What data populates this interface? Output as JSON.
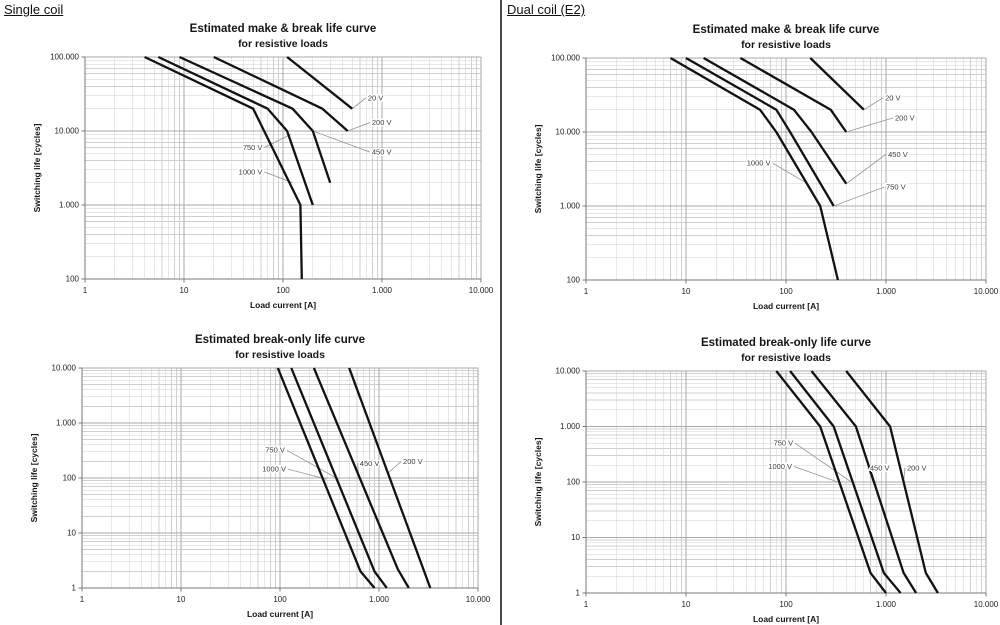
{
  "page": {
    "left_header": "Single coil",
    "right_header": "Dual coil (E2)"
  },
  "style": {
    "curve_color": "#121212",
    "grid_minor_color": "#d0d0d0",
    "grid_major_color": "#a8a8a8",
    "axis_color": "#7a7a7a",
    "leader_color": "#9c9c9c"
  },
  "chart_data": [
    {
      "id": "single-coil-make-break",
      "type": "line",
      "panel": "Single coil",
      "title": "Estimated make & break life curve",
      "subtitle": "for resistive loads",
      "xlabel": "Load current [A]",
      "ylabel": "Switching life [cycles]",
      "xscale": "log",
      "yscale": "log",
      "grid": true,
      "xlim": [
        1,
        10000
      ],
      "ylim": [
        100,
        100000
      ],
      "xticks": [
        {
          "v": 1,
          "label": "1"
        },
        {
          "v": 10,
          "label": "10"
        },
        {
          "v": 100,
          "label": "100"
        },
        {
          "v": 1000,
          "label": "1.000"
        },
        {
          "v": 10000,
          "label": "10.000"
        }
      ],
      "yticks": [
        {
          "v": 100,
          "label": "100"
        },
        {
          "v": 1000,
          "label": "1.000"
        },
        {
          "v": 10000,
          "label": "10.000"
        },
        {
          "v": 100000,
          "label": "100.000"
        }
      ],
      "series": [
        {
          "name": "20 V",
          "points": [
            [
              110,
              100000
            ],
            [
              500,
              20000
            ]
          ]
        },
        {
          "name": "200 V",
          "points": [
            [
              20,
              100000
            ],
            [
              250,
              20000
            ],
            [
              450,
              10000
            ]
          ]
        },
        {
          "name": "450 V",
          "points": [
            [
              9,
              100000
            ],
            [
              125,
              20000
            ],
            [
              200,
              10000
            ],
            [
              300,
              2000
            ]
          ]
        },
        {
          "name": "750 V",
          "points": [
            [
              5.5,
              100000
            ],
            [
              70,
              20000
            ],
            [
              110,
              10000
            ],
            [
              200,
              1000
            ]
          ]
        },
        {
          "name": "1000 V",
          "points": [
            [
              4,
              100000
            ],
            [
              50,
              20000
            ],
            [
              150,
              1000
            ],
            [
              155,
              100
            ]
          ]
        }
      ],
      "annotations": [
        {
          "text": "20 V",
          "anchor": "start",
          "label_at": [
            720,
            28000
          ],
          "point_at": [
            500,
            20000
          ]
        },
        {
          "text": "200 V",
          "anchor": "start",
          "label_at": [
            790,
            13000
          ],
          "point_at": [
            450,
            10000
          ]
        },
        {
          "text": "450 V",
          "anchor": "start",
          "label_at": [
            790,
            5200
          ],
          "point_at": [
            200,
            10000
          ]
        },
        {
          "text": "750 V",
          "anchor": "end",
          "label_at": [
            62,
            6000
          ],
          "point_at": [
            120,
            9000
          ]
        },
        {
          "text": "1000 V",
          "anchor": "end",
          "label_at": [
            62,
            2800
          ],
          "point_at": [
            125,
            2000
          ]
        }
      ]
    },
    {
      "id": "dual-coil-make-break",
      "type": "line",
      "panel": "Dual coil (E2)",
      "title": "Estimated make & break life curve",
      "subtitle": "for resistive loads",
      "xlabel": "Load current [A]",
      "ylabel": "Switching life [cycles]",
      "xscale": "log",
      "yscale": "log",
      "grid": true,
      "xlim": [
        1,
        10000
      ],
      "ylim": [
        100,
        100000
      ],
      "xticks": [
        {
          "v": 1,
          "label": "1"
        },
        {
          "v": 10,
          "label": "10"
        },
        {
          "v": 100,
          "label": "100"
        },
        {
          "v": 1000,
          "label": "1.000"
        },
        {
          "v": 10000,
          "label": "10.000"
        }
      ],
      "yticks": [
        {
          "v": 100,
          "label": "100"
        },
        {
          "v": 1000,
          "label": "1.000"
        },
        {
          "v": 10000,
          "label": "10.000"
        },
        {
          "v": 100000,
          "label": "100.000"
        }
      ],
      "series": [
        {
          "name": "20 V",
          "points": [
            [
              175,
              100000
            ],
            [
              600,
              20000
            ]
          ]
        },
        {
          "name": "200 V",
          "points": [
            [
              35,
              100000
            ],
            [
              280,
              20000
            ],
            [
              400,
              10000
            ]
          ]
        },
        {
          "name": "450 V",
          "points": [
            [
              15,
              100000
            ],
            [
              120,
              20000
            ],
            [
              180,
              10000
            ],
            [
              400,
              2000
            ]
          ]
        },
        {
          "name": "750 V",
          "points": [
            [
              10,
              100000
            ],
            [
              80,
              20000
            ],
            [
              110,
              10000
            ],
            [
              300,
              1000
            ]
          ]
        },
        {
          "name": "1000 V",
          "points": [
            [
              7,
              100000
            ],
            [
              55,
              20000
            ],
            [
              80,
              10000
            ],
            [
              220,
              1000
            ],
            [
              330,
              100
            ]
          ]
        }
      ],
      "annotations": [
        {
          "text": "20 V",
          "anchor": "start",
          "label_at": [
            980,
            29000
          ],
          "point_at": [
            600,
            20000
          ]
        },
        {
          "text": "200 V",
          "anchor": "start",
          "label_at": [
            1230,
            15500
          ],
          "point_at": [
            400,
            10000
          ]
        },
        {
          "text": "450 V",
          "anchor": "start",
          "label_at": [
            1050,
            5000
          ],
          "point_at": [
            400,
            2000
          ]
        },
        {
          "text": "750 V",
          "anchor": "start",
          "label_at": [
            1000,
            1800
          ],
          "point_at": [
            300,
            1000
          ]
        },
        {
          "text": "1000 V",
          "anchor": "end",
          "label_at": [
            70,
            3800
          ],
          "point_at": [
            165,
            2000
          ]
        }
      ]
    },
    {
      "id": "single-coil-break-only",
      "type": "line",
      "panel": "Single coil",
      "title": "Estimated break-only life curve",
      "subtitle": "for resistive loads",
      "xlabel": "Load current [A]",
      "ylabel": "Switching life [cycles]",
      "xscale": "log",
      "yscale": "log",
      "grid": true,
      "xlim": [
        1,
        10000
      ],
      "ylim": [
        1,
        10000
      ],
      "xticks": [
        {
          "v": 1,
          "label": "1"
        },
        {
          "v": 10,
          "label": "10"
        },
        {
          "v": 100,
          "label": "100"
        },
        {
          "v": 1000,
          "label": "1.000"
        },
        {
          "v": 10000,
          "label": "10.000"
        }
      ],
      "yticks": [
        {
          "v": 1,
          "label": "1"
        },
        {
          "v": 10,
          "label": "10"
        },
        {
          "v": 100,
          "label": "100"
        },
        {
          "v": 1000,
          "label": "1.000"
        },
        {
          "v": 10000,
          "label": "10.000"
        }
      ],
      "series": [
        {
          "name": "200 V",
          "points": [
            [
              500,
              10000
            ],
            [
              3300,
              1
            ]
          ]
        },
        {
          "name": "450 V",
          "points": [
            [
              220,
              10000
            ],
            [
              1550,
              2.2
            ],
            [
              2000,
              1
            ]
          ]
        },
        {
          "name": "750 V",
          "points": [
            [
              130,
              10000
            ],
            [
              900,
              2
            ],
            [
              1200,
              1
            ]
          ]
        },
        {
          "name": "1000 V",
          "points": [
            [
              95,
              10000
            ],
            [
              650,
              2
            ],
            [
              900,
              1
            ]
          ]
        }
      ],
      "annotations": [
        {
          "text": "750 V",
          "anchor": "end",
          "label_at": [
            112,
            320
          ],
          "point_at": [
            390,
            95
          ]
        },
        {
          "text": "1000 V",
          "anchor": "end",
          "label_at": [
            115,
            145
          ],
          "point_at": [
            295,
            95
          ]
        },
        {
          "text": "450 V",
          "anchor": "start",
          "label_at": [
            640,
            185
          ],
          "point_at": [
            620,
            100
          ]
        },
        {
          "text": "200 V",
          "anchor": "start",
          "label_at": [
            1750,
            200
          ],
          "point_at": [
            1250,
            125
          ]
        }
      ]
    },
    {
      "id": "dual-coil-break-only",
      "type": "line",
      "panel": "Dual coil (E2)",
      "title": "Estimated break-only life curve",
      "subtitle": "for resistive loads",
      "xlabel": "Load current [A]",
      "ylabel": "Switching life [cycles]",
      "xscale": "log",
      "yscale": "log",
      "grid": true,
      "xlim": [
        1,
        10000
      ],
      "ylim": [
        1,
        10000
      ],
      "xticks": [
        {
          "v": 1,
          "label": "1"
        },
        {
          "v": 10,
          "label": "10"
        },
        {
          "v": 100,
          "label": "100"
        },
        {
          "v": 1000,
          "label": "1.000"
        },
        {
          "v": 10000,
          "label": "10.000"
        }
      ],
      "yticks": [
        {
          "v": 1,
          "label": "1"
        },
        {
          "v": 10,
          "label": "10"
        },
        {
          "v": 100,
          "label": "100"
        },
        {
          "v": 1000,
          "label": "1.000"
        },
        {
          "v": 10000,
          "label": "10.000"
        }
      ],
      "series": [
        {
          "name": "200 V",
          "points": [
            [
              400,
              10000
            ],
            [
              1100,
              1000
            ],
            [
              2500,
              2.3
            ],
            [
              3300,
              1
            ]
          ]
        },
        {
          "name": "450 V",
          "points": [
            [
              180,
              10000
            ],
            [
              500,
              1000
            ],
            [
              1500,
              2.3
            ],
            [
              2000,
              1
            ]
          ]
        },
        {
          "name": "750 V",
          "points": [
            [
              110,
              10000
            ],
            [
              300,
              1000
            ],
            [
              950,
              2.3
            ],
            [
              1400,
              1
            ]
          ]
        },
        {
          "name": "1000 V",
          "points": [
            [
              80,
              10000
            ],
            [
              220,
              1000
            ],
            [
              700,
              2.3
            ],
            [
              1000,
              1
            ]
          ]
        }
      ],
      "annotations": [
        {
          "text": "750 V",
          "anchor": "end",
          "label_at": [
            118,
            500
          ],
          "point_at": [
            450,
            100
          ]
        },
        {
          "text": "1000 V",
          "anchor": "end",
          "label_at": [
            115,
            190
          ],
          "point_at": [
            330,
            100
          ]
        },
        {
          "text": "450 V",
          "anchor": "start",
          "label_at": [
            690,
            180
          ],
          "point_at": [
            740,
            100
          ]
        },
        {
          "text": "200 V",
          "anchor": "start",
          "label_at": [
            1620,
            180
          ],
          "point_at": [
            1500,
            100
          ]
        }
      ]
    }
  ]
}
